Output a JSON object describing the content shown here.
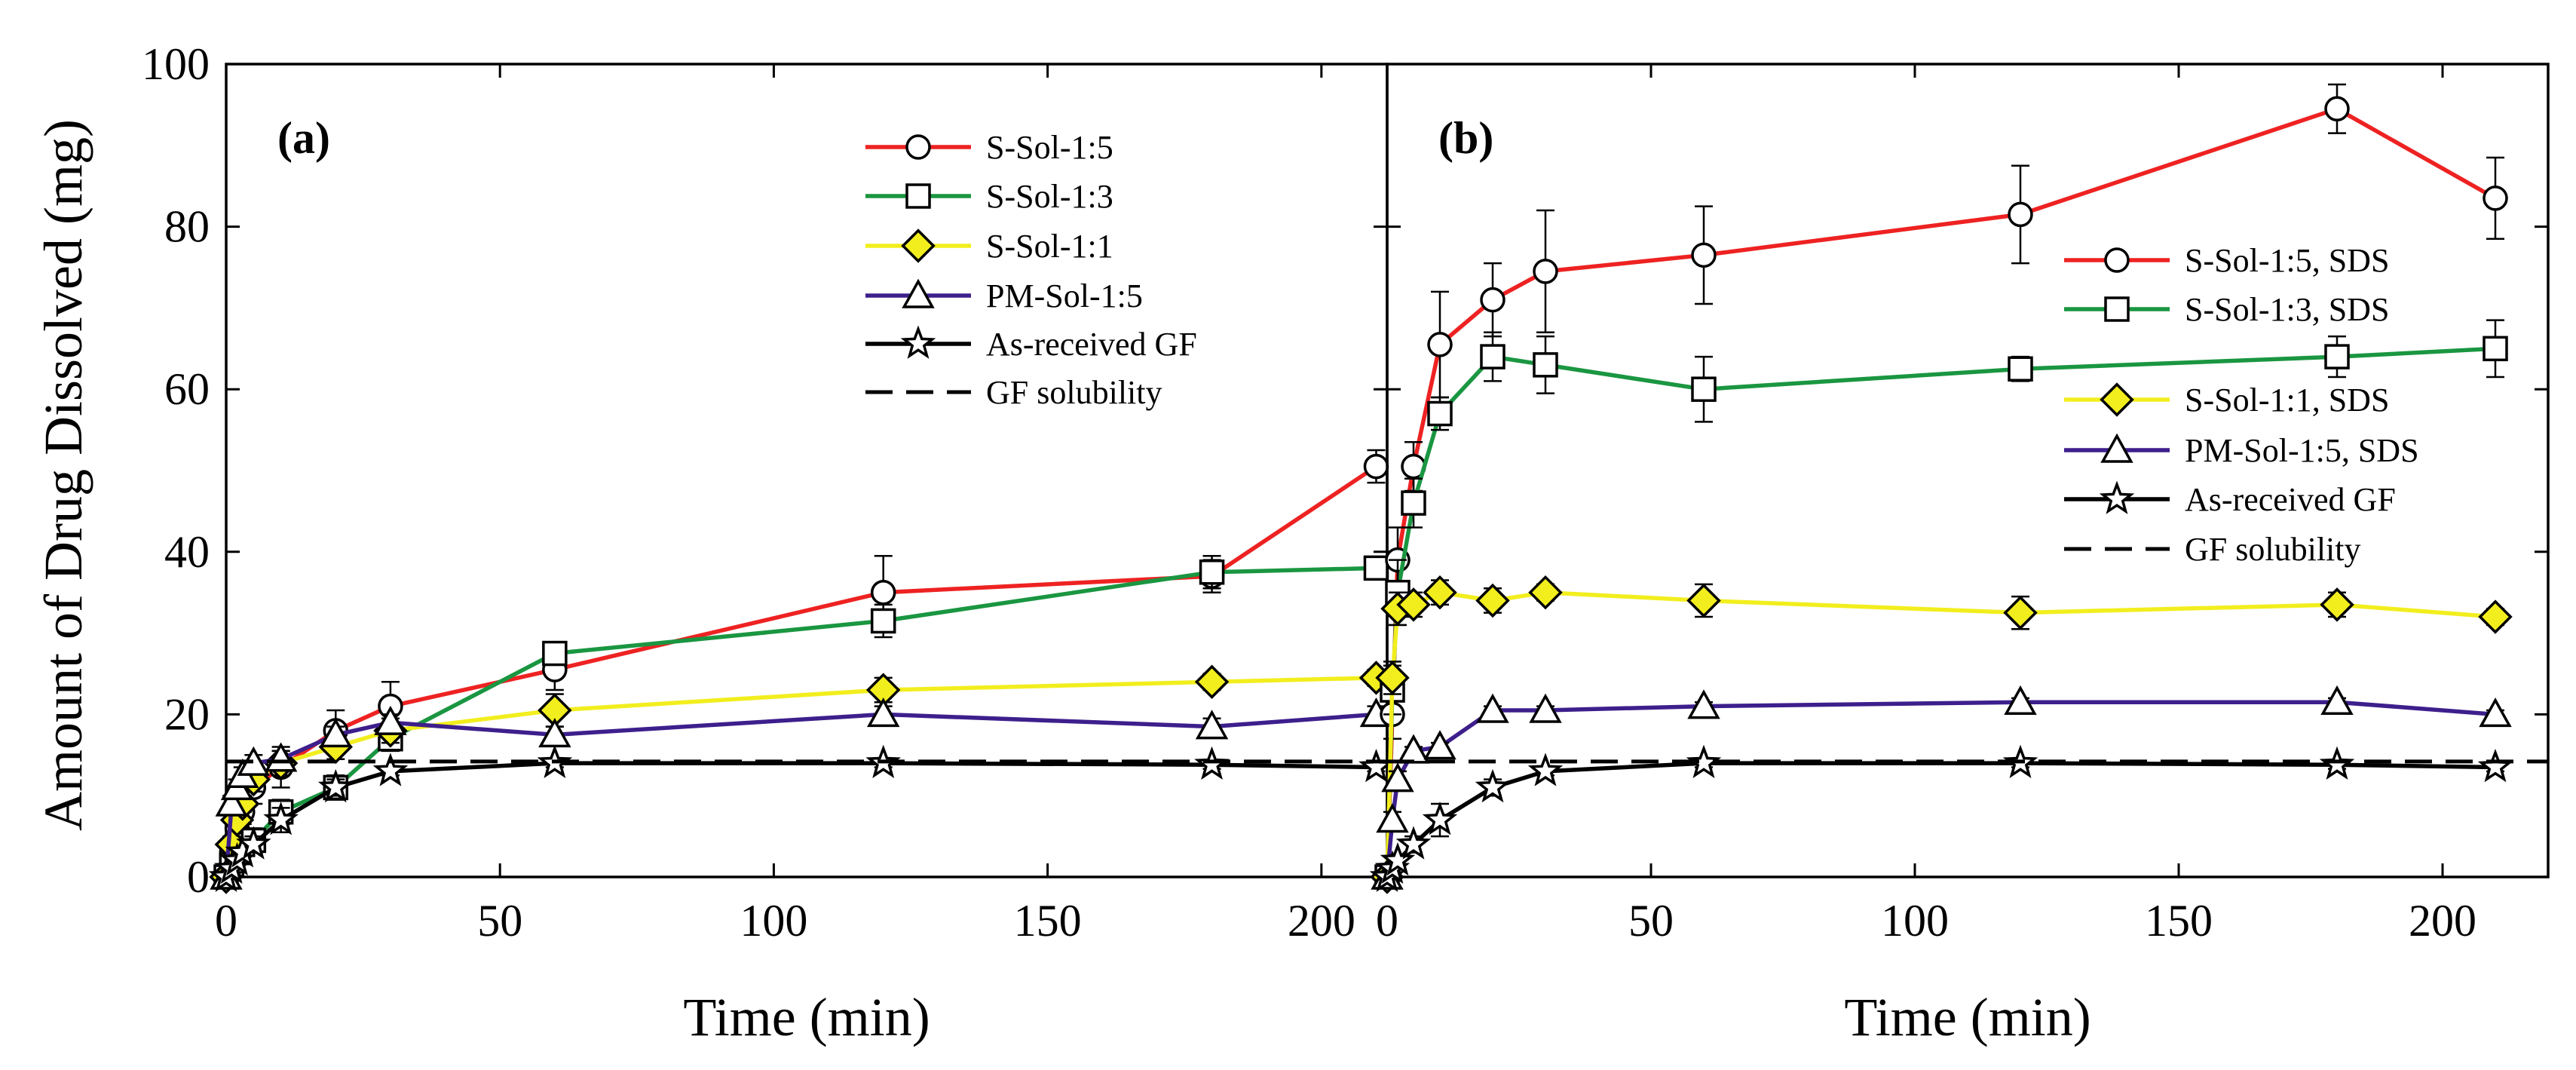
{
  "figure": {
    "y_axis_title": "Amount of Drug Dissolved (mg)",
    "colors": {
      "S-Sol-1:5": "#ee2222",
      "S-Sol-1:3": "#1a9641",
      "S-Sol-1:1": "#f2ee1e",
      "PM-Sol-1:5": "#3d1f8c",
      "As-received GF": "#000000",
      "GF solubility": "#000000"
    }
  },
  "chart_data": [
    {
      "type": "line",
      "panel_label": "(a)",
      "xlabel": "Time (min)",
      "ylabel": "Amount of Drug Dissolved (mg)",
      "xlim": [
        0,
        212
      ],
      "ylim": [
        0,
        100
      ],
      "xticks": [
        0,
        50,
        100,
        150,
        200
      ],
      "yticks": [
        0,
        20,
        40,
        60,
        80,
        100
      ],
      "legend_position": "top-right",
      "series": [
        {
          "name": "S-Sol-1:5",
          "marker": "circle",
          "color": "#ee2222",
          "x": [
            0,
            1,
            2,
            3,
            5,
            10,
            20,
            30,
            60,
            120,
            180,
            210
          ],
          "y": [
            0,
            3,
            6,
            8,
            11,
            13.5,
            18,
            21,
            25.5,
            35,
            37,
            50.5
          ],
          "err": [
            0.5,
            1,
            1.5,
            1.5,
            2,
            2.5,
            2.5,
            3,
            2.5,
            4.5,
            2,
            2
          ]
        },
        {
          "name": "S-Sol-1:3",
          "marker": "square",
          "color": "#1a9641",
          "x": [
            0,
            1,
            2,
            3,
            5,
            10,
            20,
            30,
            60,
            120,
            180,
            210
          ],
          "y": [
            0,
            1.5,
            3,
            4,
            4.5,
            8,
            11,
            17,
            27.5,
            31.5,
            37.5,
            38
          ],
          "err": [
            0.5,
            1,
            1,
            1,
            1.5,
            1.5,
            1.5,
            1.5,
            1,
            2,
            2,
            1
          ]
        },
        {
          "name": "S-Sol-1:1",
          "marker": "diamond",
          "color": "#f2ee1e",
          "x": [
            0,
            1,
            2,
            3,
            5,
            10,
            20,
            30,
            60,
            120,
            180,
            210
          ],
          "y": [
            0,
            4,
            7,
            9,
            12,
            14,
            16,
            18,
            20.5,
            23,
            24,
            24.5
          ],
          "err": [
            0.5,
            1,
            1,
            1,
            1.5,
            1.5,
            1.5,
            1.5,
            2,
            1.5,
            1,
            1
          ]
        },
        {
          "name": "PM-Sol-1:5",
          "marker": "triangle",
          "color": "#3d1f8c",
          "x": [
            0,
            1,
            2,
            3,
            5,
            10,
            20,
            30,
            60,
            120,
            180,
            210
          ],
          "y": [
            0,
            9,
            11,
            12.5,
            14,
            14.5,
            17.5,
            19,
            17.5,
            20,
            18.5,
            20
          ],
          "err": [
            0.5,
            1,
            1,
            1,
            1,
            1,
            1,
            1,
            1,
            1,
            1,
            1
          ]
        },
        {
          "name": "As-received GF",
          "marker": "star",
          "color": "#000000",
          "x": [
            0,
            1,
            2,
            3,
            5,
            10,
            20,
            30,
            60,
            120,
            180,
            210
          ],
          "y": [
            0,
            1,
            2,
            3,
            4,
            7,
            11,
            13,
            14,
            14,
            13.8,
            13.5
          ],
          "err": [
            0.3,
            0.5,
            0.5,
            0.5,
            1,
            1.5,
            1,
            0.5,
            0.5,
            0.5,
            0.5,
            0.5
          ]
        },
        {
          "name": "GF solubility",
          "style": "dashed",
          "color": "#000000",
          "x": [
            0,
            212
          ],
          "y": [
            14.2,
            14.2
          ]
        }
      ]
    },
    {
      "type": "line",
      "panel_label": "(b)",
      "xlabel": "Time (min)",
      "ylabel": "",
      "xlim": [
        0,
        220
      ],
      "ylim": [
        0,
        100
      ],
      "xticks": [
        0,
        50,
        100,
        150,
        200
      ],
      "yticks": [
        0,
        20,
        40,
        60,
        80,
        100
      ],
      "legend_position": "right",
      "series": [
        {
          "name": "S-Sol-1:5, SDS",
          "marker": "circle",
          "color": "#ee2222",
          "x": [
            0,
            1,
            2,
            5,
            10,
            20,
            30,
            60,
            120,
            180,
            210
          ],
          "y": [
            0,
            20,
            39,
            50.5,
            65.5,
            71,
            74.5,
            76.5,
            81.5,
            94.5,
            83.5
          ],
          "err": [
            0.5,
            3,
            4,
            3,
            6.5,
            4.5,
            7.5,
            6,
            6,
            3,
            5
          ]
        },
        {
          "name": "S-Sol-1:3, SDS",
          "marker": "square",
          "color": "#1a9641",
          "x": [
            0,
            1,
            2,
            5,
            10,
            20,
            30,
            60,
            120,
            180,
            210
          ],
          "y": [
            0,
            23,
            35,
            46,
            57,
            64,
            63,
            60,
            62.5,
            64,
            65
          ],
          "err": [
            0.5,
            3,
            4,
            3,
            2,
            3,
            3.5,
            4,
            1.5,
            2.5,
            3.5
          ]
        },
        {
          "name": "S-Sol-1:1, SDS",
          "marker": "diamond",
          "color": "#f2ee1e",
          "x": [
            0,
            1,
            2,
            5,
            10,
            20,
            30,
            60,
            120,
            180,
            210
          ],
          "y": [
            0,
            24.5,
            33,
            33.5,
            35,
            34,
            35,
            34,
            32.5,
            33.5,
            32
          ],
          "err": [
            0.5,
            2,
            2,
            1.5,
            1.5,
            1.5,
            1,
            2,
            2,
            1.5,
            1
          ]
        },
        {
          "name": "PM-Sol-1:5, SDS",
          "marker": "triangle",
          "color": "#3d1f8c",
          "x": [
            0,
            1,
            2,
            5,
            10,
            20,
            30,
            60,
            120,
            180,
            210
          ],
          "y": [
            0,
            7,
            12,
            15.5,
            16,
            20.5,
            20.5,
            21,
            21.5,
            21.5,
            20
          ],
          "err": [
            0.3,
            1,
            1,
            0.5,
            0.5,
            0.5,
            0.5,
            0.5,
            0.5,
            0.5,
            0.5
          ]
        },
        {
          "name": "As-received GF",
          "marker": "star",
          "color": "#000000",
          "x": [
            0,
            1,
            2,
            5,
            10,
            20,
            30,
            60,
            120,
            180,
            210
          ],
          "y": [
            0,
            1,
            2,
            4,
            7,
            11,
            13,
            14,
            14,
            13.8,
            13.5
          ],
          "err": [
            0.3,
            0.5,
            0.5,
            1,
            2,
            1,
            0.5,
            0.5,
            0.5,
            0.5,
            0.5
          ]
        },
        {
          "name": "GF solubility",
          "style": "dashed",
          "color": "#000000",
          "x": [
            0,
            220
          ],
          "y": [
            14.2,
            14.2
          ]
        }
      ]
    }
  ]
}
